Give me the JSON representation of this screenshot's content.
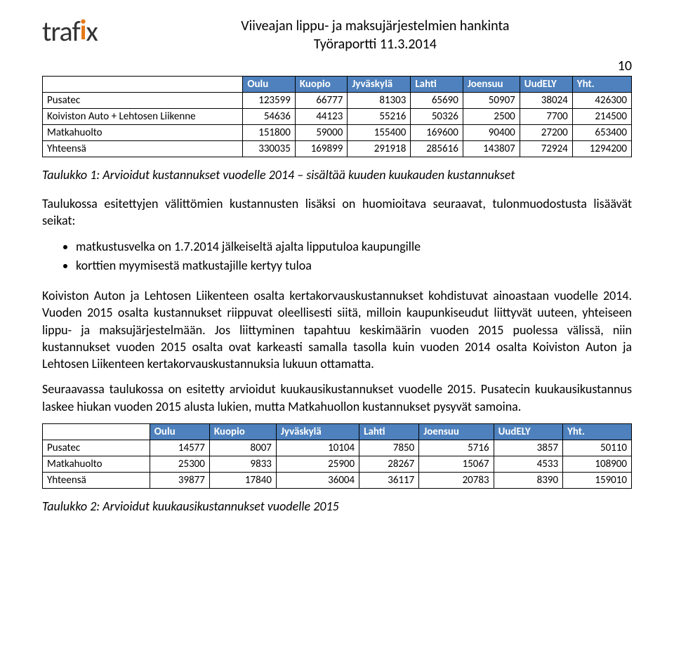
{
  "header": {
    "title_line1": "Viiveajan lippu- ja maksujärjestelmien hankinta",
    "title_line2": "Työraportti 11.3.2014",
    "page_number": "10"
  },
  "logo": {
    "text_parts": [
      "traf",
      "i",
      "x"
    ],
    "dot_color": "#e67817",
    "text_color": "#333333"
  },
  "table1": {
    "columns": [
      "",
      "Oulu",
      "Kuopio",
      "Jyväskylä",
      "Lahti",
      "Joensuu",
      "UudELY",
      "Yht."
    ],
    "rows": [
      [
        "Pusatec",
        "123599",
        "66777",
        "81303",
        "65690",
        "50907",
        "38024",
        "426300"
      ],
      [
        "Koiviston Auto + Lehtosen Liikenne",
        "54636",
        "44123",
        "55216",
        "50326",
        "2500",
        "7700",
        "214500"
      ],
      [
        "Matkahuolto",
        "151800",
        "59000",
        "155400",
        "169600",
        "90400",
        "27200",
        "653400"
      ],
      [
        "Yhteensä",
        "330035",
        "169899",
        "291918",
        "285616",
        "143807",
        "72924",
        "1294200"
      ]
    ],
    "header_bg": "#4e81bd",
    "header_fg": "#ffffff"
  },
  "caption1": "Taulukko 1: Arvioidut kustannukset vuodelle 2014 – sisältää kuuden kuukauden kustannukset",
  "para1": "Taulukossa esitettyjen välittömien kustannusten lisäksi on huomioitava seuraavat, tulonmuodostusta lisäävät seikat:",
  "bullets": [
    "matkustusvelka on 1.7.2014 jälkeiseltä ajalta lipputuloa kaupungille",
    "korttien myymisestä matkustajille kertyy tuloa"
  ],
  "para2": "Koiviston Auton ja Lehtosen Liikenteen osalta kertakorvauskustannukset kohdistuvat ainoastaan vuodelle 2014. Vuoden 2015 osalta kustannukset riippuvat oleellisesti siitä, milloin kaupunkiseudut liittyvät uuteen, yhteiseen lippu- ja maksujärjestelmään. Jos liittyminen tapahtuu keskimäärin vuoden 2015 puolessa välissä, niin kustannukset vuoden 2015 osalta ovat karkeasti samalla tasolla kuin vuoden 2014 osalta Koiviston Auton ja Lehtosen Liikenteen kertakorvauskustannuksia lukuun ottamatta.",
  "para3": "Seuraavassa taulukossa on esitetty arvioidut kuukausikustannukset vuodelle 2015. Pusatecin kuukausikustannus laskee hiukan vuoden 2015 alusta lukien, mutta Matkahuollon kustannukset pysyvät samoina.",
  "table2": {
    "columns": [
      "",
      "Oulu",
      "Kuopio",
      "Jyväskylä",
      "Lahti",
      "Joensuu",
      "UudELY",
      "Yht."
    ],
    "rows": [
      [
        "Pusatec",
        "14577",
        "8007",
        "10104",
        "7850",
        "5716",
        "3857",
        "50110"
      ],
      [
        "Matkahuolto",
        "25300",
        "9833",
        "25900",
        "28267",
        "15067",
        "4533",
        "108900"
      ],
      [
        "Yhteensä",
        "39877",
        "17840",
        "36004",
        "36117",
        "20783",
        "8390",
        "159010"
      ]
    ],
    "header_bg": "#4e81bd",
    "header_fg": "#ffffff"
  },
  "caption2": "Taulukko 2: Arvioidut kuukausikustannukset vuodelle 2015"
}
